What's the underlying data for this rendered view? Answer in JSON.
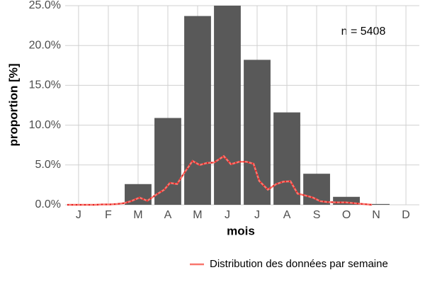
{
  "chart_data": {
    "type": "bar",
    "ylabel": "proportion [%]",
    "xlabel": "mois",
    "annotation": "n = 5408",
    "categories": [
      "J",
      "F",
      "M",
      "A",
      "M",
      "J",
      "J",
      "A",
      "S",
      "O",
      "N",
      "D"
    ],
    "values": [
      0,
      0,
      2.6,
      10.9,
      23.7,
      25.0,
      18.2,
      11.6,
      3.9,
      1.0,
      0.1,
      0
    ],
    "color": "#595959",
    "xlim": [
      0.55,
      12.45
    ],
    "ylim": [
      0,
      25
    ],
    "yticks": [
      {
        "value": 0,
        "label": "0.0%"
      },
      {
        "value": 5,
        "label": "5.0%"
      },
      {
        "value": 10,
        "label": "10.0%"
      },
      {
        "value": 15,
        "label": "15.0%"
      },
      {
        "value": 20,
        "label": "20.0%"
      },
      {
        "value": 25,
        "label": "25.0%"
      }
    ],
    "grid": true,
    "line": {
      "type": "line",
      "name": "Distribution des données par semaine",
      "color": "#f8766d",
      "dot_color": "#e41a1c",
      "x": [
        0.62,
        0.86,
        1.1,
        1.33,
        1.57,
        1.81,
        2.05,
        2.29,
        2.52,
        2.76,
        3.05,
        3.31,
        3.6,
        3.88,
        4.07,
        4.31,
        4.55,
        4.83,
        5.07,
        5.31,
        5.55,
        5.88,
        6.12,
        6.4,
        6.64,
        6.88,
        7.07,
        7.36,
        7.64,
        7.88,
        8.12,
        8.36,
        8.64,
        8.88,
        9.12,
        9.36,
        9.67,
        9.98,
        10.26,
        10.55,
        10.86
      ],
      "values": [
        0,
        0,
        0,
        0,
        0,
        0.05,
        0.05,
        0.1,
        0.2,
        0.45,
        0.9,
        0.5,
        1.25,
        1.9,
        2.75,
        2.6,
        4.0,
        5.5,
        5.0,
        5.25,
        5.3,
        6.1,
        5.1,
        5.4,
        5.4,
        5.15,
        3.0,
        1.9,
        2.6,
        2.9,
        2.95,
        1.4,
        1.15,
        0.9,
        0.45,
        0.35,
        0.3,
        0.3,
        0.2,
        0.1,
        0
      ]
    }
  }
}
